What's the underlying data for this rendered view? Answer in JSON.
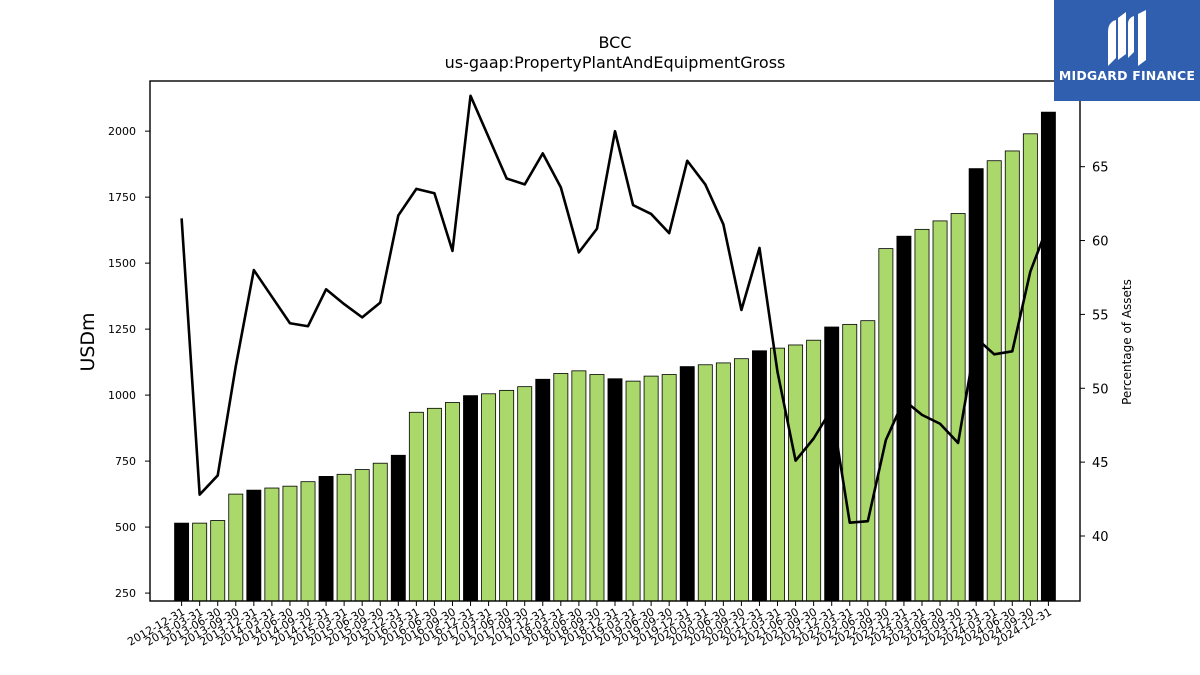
{
  "chart_data": {
    "type": "bar+line",
    "title": "BCC",
    "subtitle": "us-gaap:PropertyPlantAndEquipmentGross",
    "ylabel": "USDm",
    "y2label": "Percentage of Assets",
    "ylim": [
      220,
      2190
    ],
    "y2lim": [
      35.6,
      70.8
    ],
    "yticks": [
      250,
      500,
      750,
      1000,
      1250,
      1500,
      1750,
      2000
    ],
    "y2ticks": [
      40,
      45,
      50,
      55,
      60,
      65
    ],
    "colors": {
      "annual": "#000000",
      "quarterly": "#aad86a",
      "line": "#000000"
    },
    "categories": [
      "2012-12-31",
      "2013-03-31",
      "2013-06-30",
      "2013-09-30",
      "2013-12-31",
      "2014-03-31",
      "2014-06-30",
      "2014-09-30",
      "2014-12-31",
      "2015-03-31",
      "2015-06-30",
      "2015-09-30",
      "2015-12-31",
      "2016-03-31",
      "2016-06-30",
      "2016-09-30",
      "2016-12-31",
      "2017-03-31",
      "2017-06-30",
      "2017-09-30",
      "2017-12-31",
      "2018-03-31",
      "2018-06-30",
      "2018-09-30",
      "2018-12-31",
      "2019-03-31",
      "2019-06-30",
      "2019-09-30",
      "2019-12-31",
      "2020-03-31",
      "2020-06-30",
      "2020-09-30",
      "2020-12-31",
      "2021-03-31",
      "2021-06-30",
      "2021-09-30",
      "2021-12-31",
      "2022-03-31",
      "2022-06-30",
      "2022-09-30",
      "2022-12-31",
      "2023-03-31",
      "2023-06-30",
      "2023-09-30",
      "2023-12-31",
      "2024-03-31",
      "2024-06-30",
      "2024-09-30",
      "2024-12-31"
    ],
    "series": [
      {
        "kind": "bar",
        "values": [
          515,
          515,
          525,
          625,
          640,
          648,
          655,
          672,
          692,
          700,
          718,
          742,
          772,
          935,
          950,
          972,
          998,
          1005,
          1018,
          1032,
          1060,
          1082,
          1092,
          1078,
          1062,
          1053,
          1072,
          1078,
          1108,
          1115,
          1122,
          1138,
          1168,
          1178,
          1190,
          1208,
          1258,
          1268,
          1282,
          1555,
          1602,
          1628,
          1660,
          1688,
          1858,
          1888,
          1925,
          1990,
          2072
        ],
        "annual": [
          true,
          false,
          false,
          false,
          true,
          false,
          false,
          false,
          true,
          false,
          false,
          false,
          true,
          false,
          false,
          false,
          true,
          false,
          false,
          false,
          true,
          false,
          false,
          false,
          true,
          false,
          false,
          false,
          true,
          false,
          false,
          false,
          true,
          false,
          false,
          false,
          true,
          false,
          false,
          false,
          true,
          false,
          false,
          false,
          true,
          false,
          false,
          false,
          true
        ]
      },
      {
        "kind": "line",
        "axis": "right",
        "values": [
          61.5,
          42.8,
          44.1,
          51.5,
          58.0,
          56.2,
          54.4,
          54.2,
          56.7,
          55.7,
          54.8,
          55.8,
          61.7,
          63.5,
          63.2,
          59.3,
          69.8,
          67.0,
          64.2,
          63.8,
          65.9,
          63.6,
          59.2,
          60.8,
          67.4,
          62.4,
          61.8,
          60.5,
          65.4,
          63.8,
          61.1,
          55.3,
          59.5,
          51.1,
          45.1,
          46.6,
          48.6,
          40.9,
          41.0,
          46.5,
          49.2,
          48.2,
          47.6,
          46.3,
          53.4,
          52.3,
          52.5,
          57.9,
          61.1
        ]
      }
    ]
  },
  "logo": {
    "text": "MIDGARD FINANCE",
    "icon": "midgard-logo-icon"
  }
}
